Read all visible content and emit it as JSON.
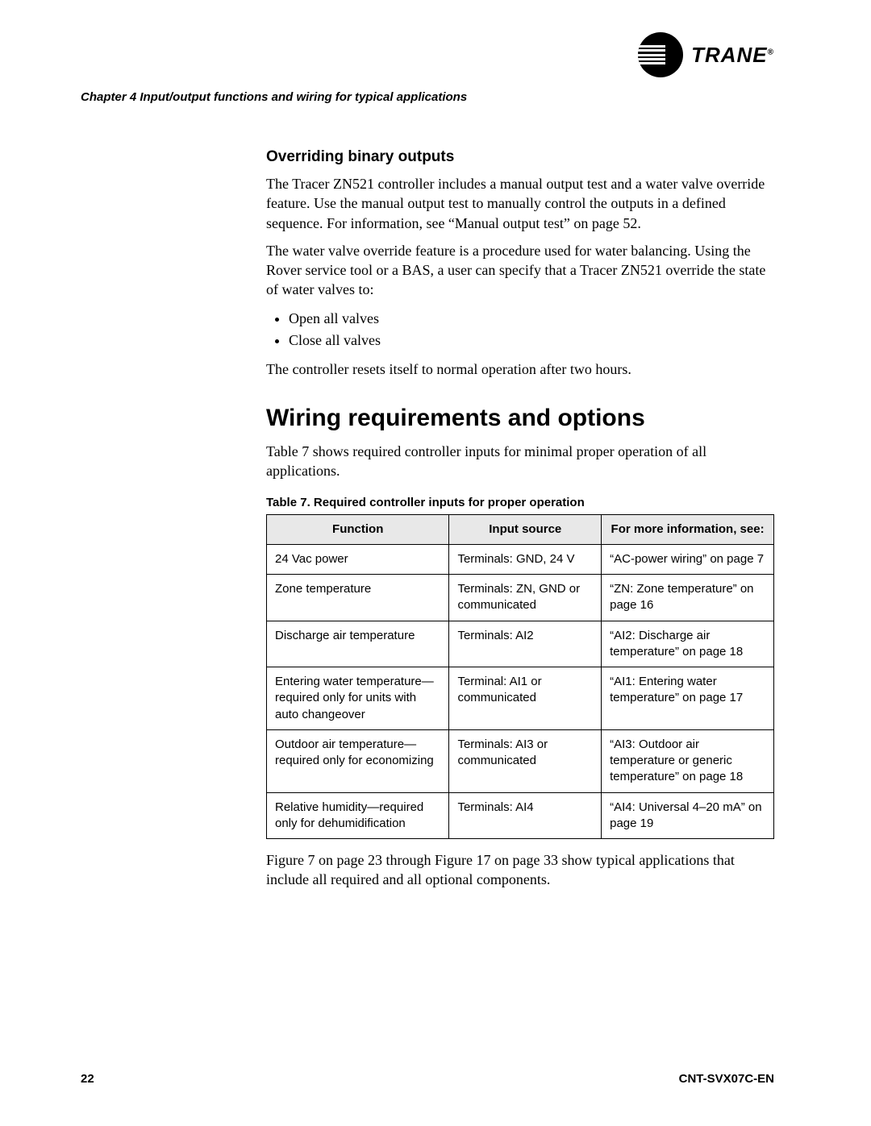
{
  "brand": {
    "name": "TRANE"
  },
  "header": {
    "chapter": "Chapter 4 Input/output functions and wiring for typical applications"
  },
  "section1": {
    "heading": "Overriding binary outputs",
    "p1": "The Tracer ZN521 controller includes a manual output test and a water valve override feature. Use the manual output test to manually control the outputs in a defined sequence. For information, see “Manual output test” on page 52.",
    "p2": "The water valve override feature is a procedure used for water balancing. Using the Rover service tool or a BAS, a user can specify that a Tracer ZN521 override the state of water valves to:",
    "bullets": [
      "Open all valves",
      "Close all valves"
    ],
    "p3": "The controller resets itself to normal operation after two hours."
  },
  "section2": {
    "heading": "Wiring requirements and options",
    "intro": "Table 7 shows required controller inputs for minimal proper operation of all applications.",
    "table_caption": "Table 7.  Required controller inputs for proper operation",
    "table": {
      "columns": [
        "Function",
        "Input source",
        "For more information, see:"
      ],
      "rows": [
        [
          "24 Vac power",
          "Terminals: GND, 24 V",
          "“AC-power wiring” on page 7"
        ],
        [
          "Zone temperature",
          "Terminals: ZN, GND or communicated",
          "“ZN: Zone temperature” on page 16"
        ],
        [
          "Discharge air temperature",
          "Terminals: AI2",
          "“AI2: Discharge air temperature” on page 18"
        ],
        [
          "Entering water temperature—required only for units with auto changeover",
          "Terminal: AI1 or communicated",
          "“AI1: Entering water temperature” on page 17"
        ],
        [
          "Outdoor air temperature—required only for economizing",
          "Terminals: AI3 or communicated",
          "“AI3: Outdoor air temperature or generic temperature” on page 18"
        ],
        [
          "Relative humidity—required only for dehumidification",
          "Terminals: AI4",
          "“AI4: Universal 4–20 mA” on page 19"
        ]
      ]
    },
    "outro": "Figure 7 on page 23 through Figure 17 on page 33 show typical applications that include all required and all optional components."
  },
  "footer": {
    "page": "22",
    "doc_id": "CNT-SVX07C-EN"
  }
}
